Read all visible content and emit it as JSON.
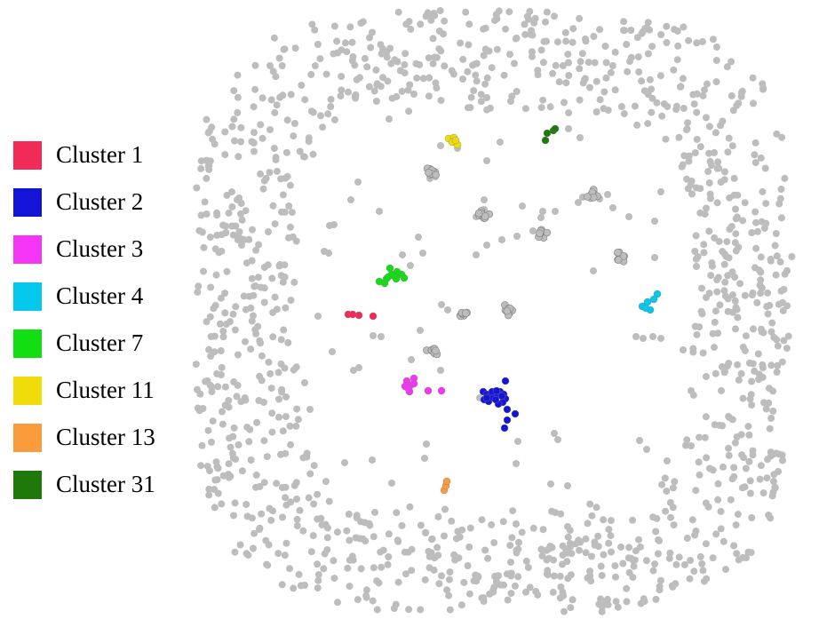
{
  "legend": {
    "items": [
      {
        "label": "Cluster 1",
        "color": "#f22a58"
      },
      {
        "label": "Cluster 2",
        "color": "#1414d8"
      },
      {
        "label": "Cluster 3",
        "color": "#f535f5"
      },
      {
        "label": "Cluster 4",
        "color": "#04c8ec"
      },
      {
        "label": "Cluster 7",
        "color": "#12df12"
      },
      {
        "label": "Cluster 11",
        "color": "#f0dc08"
      },
      {
        "label": "Cluster 13",
        "color": "#fa9b3c"
      },
      {
        "label": "Cluster 31",
        "color": "#1e780a"
      }
    ]
  },
  "network": {
    "background_node_color": "#bdbdbd",
    "node_outline_color": "#808080"
  }
}
